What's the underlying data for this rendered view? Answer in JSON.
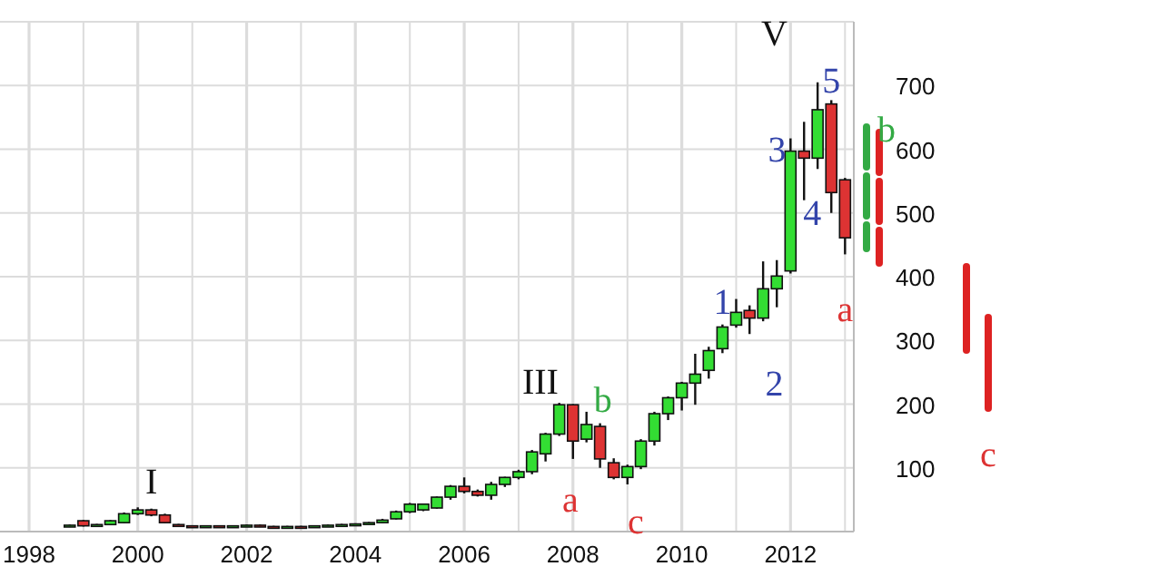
{
  "chart_data": {
    "type": "candlestick",
    "x": [
      "1998-10",
      "1999-01",
      "1999-04",
      "1999-07",
      "1999-10",
      "2000-01",
      "2000-04",
      "2000-07",
      "2000-10",
      "2001-01",
      "2001-04",
      "2001-07",
      "2001-10",
      "2002-01",
      "2002-04",
      "2002-07",
      "2002-10",
      "2003-01",
      "2003-04",
      "2003-07",
      "2003-10",
      "2004-01",
      "2004-04",
      "2004-07",
      "2004-10",
      "2005-01",
      "2005-04",
      "2005-07",
      "2005-10",
      "2006-01",
      "2006-04",
      "2006-07",
      "2006-10",
      "2007-01",
      "2007-04",
      "2007-07",
      "2007-10",
      "2008-01",
      "2008-04",
      "2008-07",
      "2008-10",
      "2009-01",
      "2009-04",
      "2009-07",
      "2009-10",
      "2010-01",
      "2010-04",
      "2010-07",
      "2010-10",
      "2011-01",
      "2011-04",
      "2011-07",
      "2011-10",
      "2012-01",
      "2012-04",
      "2012-07",
      "2012-10",
      "2013-01"
    ],
    "ohlc": [
      [
        8,
        11,
        7,
        10
      ],
      [
        17,
        18,
        8,
        9
      ],
      [
        10,
        12,
        9,
        11
      ],
      [
        11,
        18,
        10,
        17
      ],
      [
        14,
        30,
        13,
        28
      ],
      [
        28,
        38,
        26,
        34
      ],
      [
        34,
        36,
        24,
        26
      ],
      [
        26,
        28,
        13,
        14
      ],
      [
        11,
        12,
        8,
        9
      ],
      [
        9,
        10,
        7,
        8
      ],
      [
        8,
        10,
        7,
        9
      ],
      [
        9,
        10,
        7,
        8
      ],
      [
        8,
        10,
        7,
        9
      ],
      [
        9,
        11,
        8,
        10
      ],
      [
        10,
        11,
        7,
        8
      ],
      [
        8,
        9,
        6,
        7
      ],
      [
        7,
        9,
        6,
        8
      ],
      [
        8,
        9,
        6,
        7
      ],
      [
        7,
        10,
        6,
        9
      ],
      [
        9,
        11,
        8,
        10
      ],
      [
        10,
        12,
        9,
        11
      ],
      [
        11,
        13,
        10,
        12
      ],
      [
        12,
        15,
        11,
        14
      ],
      [
        14,
        20,
        13,
        18
      ],
      [
        20,
        33,
        19,
        31
      ],
      [
        31,
        45,
        29,
        43
      ],
      [
        34,
        44,
        32,
        43
      ],
      [
        37,
        55,
        36,
        54
      ],
      [
        54,
        73,
        50,
        71
      ],
      [
        71,
        85,
        60,
        63
      ],
      [
        63,
        66,
        55,
        57
      ],
      [
        57,
        78,
        50,
        74
      ],
      [
        74,
        86,
        70,
        85
      ],
      [
        85,
        97,
        82,
        94
      ],
      [
        94,
        128,
        90,
        125
      ],
      [
        122,
        155,
        110,
        153
      ],
      [
        153,
        202,
        150,
        199
      ],
      [
        199,
        200,
        114,
        142
      ],
      [
        145,
        188,
        140,
        168
      ],
      [
        165,
        170,
        100,
        114
      ],
      [
        108,
        115,
        82,
        85
      ],
      [
        85,
        105,
        74,
        102
      ],
      [
        102,
        145,
        98,
        142
      ],
      [
        142,
        188,
        135,
        185
      ],
      [
        185,
        212,
        175,
        210
      ],
      [
        210,
        235,
        190,
        233
      ],
      [
        233,
        279,
        199,
        247
      ],
      [
        253,
        290,
        240,
        284
      ],
      [
        287,
        325,
        280,
        321
      ],
      [
        324,
        365,
        320,
        344
      ],
      [
        347,
        355,
        310,
        335
      ],
      [
        335,
        424,
        330,
        381
      ],
      [
        381,
        426,
        352,
        401
      ],
      [
        409,
        617,
        405,
        597
      ],
      [
        597,
        643,
        520,
        586
      ],
      [
        586,
        705,
        569,
        662
      ],
      [
        671,
        677,
        500,
        532
      ],
      [
        552,
        555,
        435,
        461
      ]
    ],
    "colors": [
      "#33dd33",
      "#dd3333",
      "#33dd33",
      "#33dd33",
      "#33dd33",
      "#33dd33",
      "#dd3333",
      "#dd3333",
      "#dd3333",
      "#dd3333",
      "#33dd33",
      "#dd3333",
      "#33dd33",
      "#33dd33",
      "#dd3333",
      "#dd3333",
      "#33dd33",
      "#dd3333",
      "#33dd33",
      "#33dd33",
      "#33dd33",
      "#33dd33",
      "#33dd33",
      "#33dd33",
      "#33dd33",
      "#33dd33",
      "#33dd33",
      "#33dd33",
      "#33dd33",
      "#dd3333",
      "#dd3333",
      "#33dd33",
      "#33dd33",
      "#33dd33",
      "#33dd33",
      "#33dd33",
      "#33dd33",
      "#dd3333",
      "#33dd33",
      "#dd3333",
      "#dd3333",
      "#33dd33",
      "#33dd33",
      "#33dd33",
      "#33dd33",
      "#33dd33",
      "#33dd33",
      "#33dd33",
      "#33dd33",
      "#33dd33",
      "#dd3333",
      "#33dd33",
      "#33dd33",
      "#33dd33",
      "#dd3333",
      "#33dd33",
      "#dd3333",
      "#dd3333"
    ],
    "xlim": [
      "1998-01",
      "2013-03"
    ],
    "xticks": [
      {
        "value": "1998",
        "label": "1998"
      },
      {
        "value": "1999",
        "label": null
      },
      {
        "value": "2000",
        "label": "2000"
      },
      {
        "value": "2001",
        "label": null
      },
      {
        "value": "2002",
        "label": "2002"
      },
      {
        "value": "2003",
        "label": null
      },
      {
        "value": "2004",
        "label": "2004"
      },
      {
        "value": "2005",
        "label": null
      },
      {
        "value": "2006",
        "label": "2006"
      },
      {
        "value": "2007",
        "label": null
      },
      {
        "value": "2008",
        "label": "2008"
      },
      {
        "value": "2009",
        "label": null
      },
      {
        "value": "2010",
        "label": "2010"
      },
      {
        "value": "2011",
        "label": null
      },
      {
        "value": "2012",
        "label": "2012"
      },
      {
        "value": "2013",
        "label": null
      }
    ],
    "ylim": [
      0,
      800
    ],
    "yticks": [
      {
        "value": 0,
        "label": null
      },
      100,
      200,
      300,
      400,
      500,
      600,
      700,
      {
        "value": 800,
        "label": null
      }
    ],
    "grid": true,
    "annotations": [
      "I",
      "III",
      "a",
      "b",
      "c",
      "1",
      "2",
      "V",
      "3",
      "4",
      "5",
      "a",
      "b",
      "c"
    ]
  }
}
